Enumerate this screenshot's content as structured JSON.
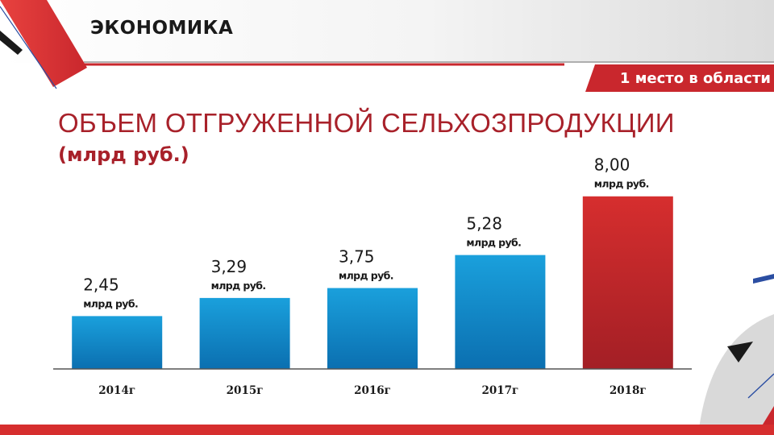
{
  "header": {
    "section_title": "ЭКОНОМИКА",
    "rank_badge": "1 место в области"
  },
  "title": "ОБЪЕМ ОТГРУЖЕННОЙ СЕЛЬХОЗПРОДУКЦИИ",
  "subtitle": "(млрд руб.)",
  "colors": {
    "blue_bar": "#1aa0dc",
    "red_bar": "#c9272d",
    "accent_red": "#d62e2e",
    "title_red": "#a8212a",
    "navy": "#2b4ea2"
  },
  "chart_data": {
    "type": "bar",
    "title": "ОБЪЕМ ОТГРУЖЕННОЙ СЕЛЬХОЗПРОДУКЦИИ",
    "subtitle": "(млрд руб.)",
    "categories": [
      "2014г",
      "2015г",
      "2016г",
      "2017г",
      "2018г"
    ],
    "values": [
      2.45,
      3.29,
      3.75,
      5.28,
      8.0
    ],
    "value_labels": [
      "2,45",
      "3,29",
      "3,75",
      "5,28",
      "8,00"
    ],
    "unit_label": "млрд руб.",
    "highlight": [
      "blue",
      "blue",
      "blue",
      "blue",
      "red"
    ],
    "ylim": [
      0,
      8.7
    ],
    "grid": false,
    "legend": "none"
  }
}
